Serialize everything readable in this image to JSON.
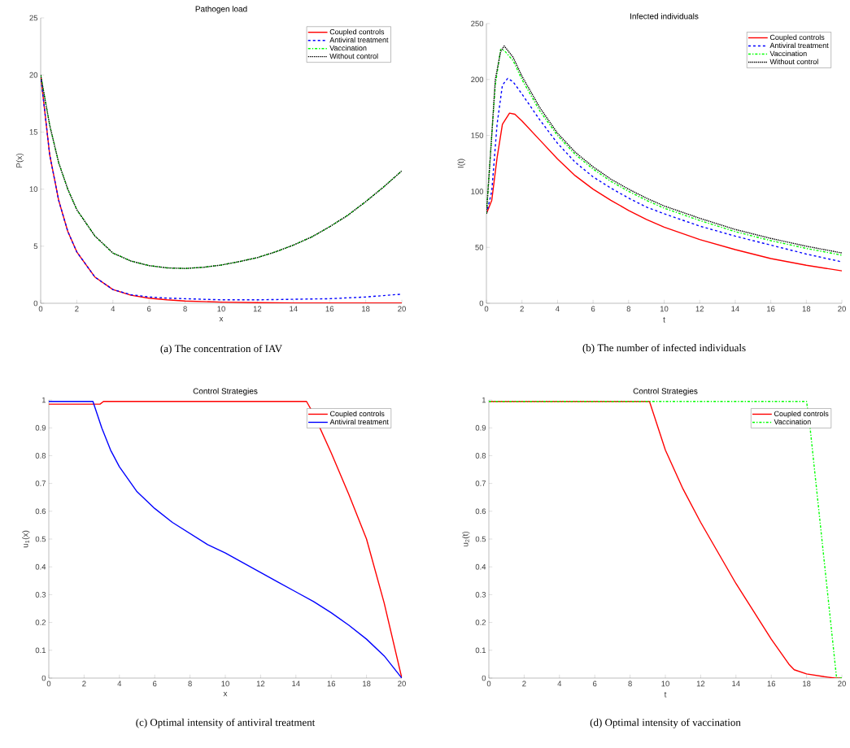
{
  "chart_data": [
    {
      "type": "line",
      "title": "Pathogen load",
      "xlabel": "x",
      "ylabel": "P(x)",
      "xlim": [
        0,
        20
      ],
      "ylim": [
        0,
        25
      ],
      "xticks": [
        0,
        2,
        4,
        6,
        8,
        10,
        12,
        14,
        16,
        18,
        20
      ],
      "yticks": [
        0,
        5,
        10,
        15,
        20,
        25
      ],
      "legend": "top right",
      "annotations": [
        "(a) The concentration of IAV"
      ],
      "series": [
        {
          "name": "Coupled controls",
          "color": "#ff0000",
          "line_style": "solid",
          "x": [
            0,
            0.5,
            1,
            1.5,
            2,
            3,
            4,
            5,
            6,
            7,
            8,
            10,
            12,
            14,
            16,
            20
          ],
          "values": [
            20,
            13,
            9,
            6.3,
            4.5,
            2.3,
            1.2,
            0.7,
            0.45,
            0.3,
            0.2,
            0.1,
            0.05,
            0.03,
            0.02,
            0.02
          ]
        },
        {
          "name": "Antiviral treatment",
          "color": "#0000ff",
          "line_style": "dashed",
          "x": [
            0,
            0.5,
            1,
            1.5,
            2,
            3,
            4,
            5,
            6,
            7,
            8,
            10,
            12,
            14,
            16,
            18,
            20
          ],
          "values": [
            20,
            13,
            9,
            6.3,
            4.5,
            2.3,
            1.2,
            0.75,
            0.55,
            0.45,
            0.4,
            0.3,
            0.3,
            0.35,
            0.4,
            0.55,
            0.8
          ]
        },
        {
          "name": "Vaccination",
          "color": "#00ff00",
          "line_style": "dashdot",
          "x": [
            0,
            0.5,
            1,
            1.5,
            2,
            3,
            4,
            5,
            6,
            7,
            8,
            9,
            10,
            11,
            12,
            13,
            14,
            15,
            16,
            17,
            18,
            19,
            20
          ],
          "values": [
            20,
            15.6,
            12.3,
            10,
            8.2,
            5.9,
            4.4,
            3.7,
            3.3,
            3.1,
            3.05,
            3.15,
            3.35,
            3.65,
            4,
            4.5,
            5.1,
            5.8,
            6.7,
            7.7,
            8.9,
            10.2,
            11.6
          ]
        },
        {
          "name": "Without control",
          "color": "#000000",
          "line_style": "dotted",
          "x": [
            0,
            0.5,
            1,
            1.5,
            2,
            3,
            4,
            5,
            6,
            7,
            8,
            9,
            10,
            11,
            12,
            13,
            14,
            15,
            16,
            17,
            18,
            19,
            20
          ],
          "values": [
            20,
            15.6,
            12.3,
            10,
            8.2,
            5.9,
            4.4,
            3.7,
            3.3,
            3.1,
            3.05,
            3.15,
            3.35,
            3.65,
            4,
            4.5,
            5.1,
            5.8,
            6.7,
            7.7,
            8.9,
            10.2,
            11.6
          ]
        }
      ]
    },
    {
      "type": "line",
      "title": "Infected individuals",
      "xlabel": "t",
      "ylabel": "I(t)",
      "xlim": [
        0,
        20
      ],
      "ylim": [
        0,
        250
      ],
      "xticks": [
        0,
        2,
        4,
        6,
        8,
        10,
        12,
        14,
        16,
        18,
        20
      ],
      "yticks": [
        0,
        50,
        100,
        150,
        200,
        250
      ],
      "legend": "top right",
      "annotations": [
        "(b) The number of infected individuals"
      ],
      "series": [
        {
          "name": "Coupled controls",
          "color": "#ff0000",
          "line_style": "solid",
          "x": [
            0,
            0.3,
            0.6,
            0.9,
            1.3,
            1.6,
            2,
            3,
            4,
            5,
            6,
            7,
            8,
            9,
            10,
            12,
            14,
            16,
            18,
            20
          ],
          "values": [
            80,
            92,
            130,
            160,
            170,
            169,
            163,
            146,
            129,
            114,
            102,
            92,
            83,
            75,
            68,
            57,
            48,
            40,
            34,
            29
          ]
        },
        {
          "name": "Antiviral treatment",
          "color": "#0000ff",
          "line_style": "dashed",
          "x": [
            0,
            0.3,
            0.6,
            0.9,
            1.2,
            1.5,
            2,
            3,
            4,
            5,
            6,
            7,
            8,
            9,
            10,
            12,
            14,
            16,
            18,
            20
          ],
          "values": [
            80,
            100,
            160,
            195,
            201,
            198,
            187,
            164,
            143,
            126,
            113,
            103,
            94,
            86,
            80,
            69,
            60,
            52,
            44,
            37
          ]
        },
        {
          "name": "Vaccination",
          "color": "#00ff00",
          "line_style": "dashdot",
          "x": [
            0,
            0.3,
            0.5,
            0.8,
            1,
            1.5,
            2,
            3,
            4,
            5,
            6,
            7,
            8,
            9,
            10,
            12,
            14,
            16,
            18,
            20
          ],
          "values": [
            80,
            150,
            195,
            227,
            226,
            217,
            200,
            172,
            150,
            133,
            120,
            109,
            100,
            92,
            85,
            74,
            64,
            56,
            49,
            43
          ]
        },
        {
          "name": "Without control",
          "color": "#000000",
          "line_style": "dotted",
          "x": [
            0,
            0.3,
            0.5,
            0.8,
            1,
            1.5,
            2,
            3,
            4,
            5,
            6,
            7,
            8,
            9,
            10,
            12,
            14,
            16,
            18,
            20
          ],
          "values": [
            80,
            150,
            200,
            225,
            230,
            220,
            203,
            175,
            152,
            135,
            122,
            111,
            102,
            94,
            87,
            76,
            66,
            58,
            51,
            45
          ]
        }
      ]
    },
    {
      "type": "line",
      "title": "Control Strategies",
      "xlabel": "x",
      "ylabel": "u$_{1}$(x)",
      "xlim": [
        0,
        20
      ],
      "ylim": [
        0,
        1
      ],
      "xticks": [
        0,
        2,
        4,
        6,
        8,
        10,
        12,
        14,
        16,
        18,
        20
      ],
      "yticks": [
        0,
        0.1,
        0.2,
        0.3,
        0.4,
        0.5,
        0.6,
        0.7,
        0.8,
        0.9,
        1
      ],
      "legend": "top right",
      "annotations": [
        "(c) Optimal intensity of antiviral treatment"
      ],
      "series": [
        {
          "name": "Coupled controls",
          "color": "#ff0000",
          "line_style": "solid",
          "x": [
            0,
            2.9,
            3.1,
            14.6,
            15,
            16,
            17,
            18,
            19,
            20
          ],
          "values": [
            0.985,
            0.985,
            0.995,
            0.995,
            0.95,
            0.81,
            0.66,
            0.5,
            0.27,
            0
          ]
        },
        {
          "name": "Antiviral treatment",
          "color": "#0000ff",
          "line_style": "solid",
          "x": [
            0,
            2.5,
            3,
            3.5,
            4,
            5,
            6,
            7,
            8,
            9,
            10,
            11,
            12,
            13,
            14,
            15,
            16,
            17,
            18,
            19,
            20
          ],
          "values": [
            0.995,
            0.995,
            0.9,
            0.82,
            0.76,
            0.67,
            0.61,
            0.56,
            0.52,
            0.48,
            0.45,
            0.415,
            0.38,
            0.345,
            0.31,
            0.275,
            0.235,
            0.19,
            0.14,
            0.08,
            0
          ]
        }
      ]
    },
    {
      "type": "line",
      "title": "Control Strategies",
      "xlabel": "t",
      "ylabel": "u$_{2}$(t)",
      "xlim": [
        0,
        20
      ],
      "ylim": [
        0,
        1
      ],
      "xticks": [
        0,
        2,
        4,
        6,
        8,
        10,
        12,
        14,
        16,
        18,
        20
      ],
      "yticks": [
        0,
        0.1,
        0.2,
        0.3,
        0.4,
        0.5,
        0.6,
        0.7,
        0.8,
        0.9,
        1
      ],
      "legend": "top right",
      "annotations": [
        "(d) Optimal intensity of vaccination"
      ],
      "series": [
        {
          "name": "Coupled controls",
          "color": "#ff0000",
          "line_style": "solid",
          "x": [
            0,
            9.1,
            10,
            11,
            12,
            13,
            14,
            15,
            16,
            17,
            17.3,
            18,
            19,
            19.6,
            20
          ],
          "values": [
            0.995,
            0.995,
            0.82,
            0.68,
            0.56,
            0.45,
            0.34,
            0.24,
            0.14,
            0.05,
            0.03,
            0.015,
            0.005,
            0,
            0
          ]
        },
        {
          "name": "Vaccination",
          "color": "#00ff00",
          "line_style": "dashdot",
          "x": [
            0,
            18,
            18.2,
            19.7,
            20
          ],
          "values": [
            0.995,
            0.995,
            0.9,
            0,
            0
          ]
        }
      ]
    }
  ]
}
